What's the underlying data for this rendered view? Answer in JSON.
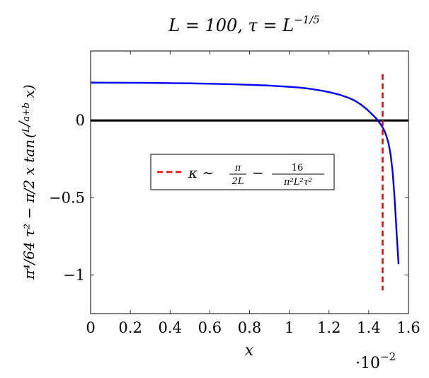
{
  "chart_data": {
    "type": "line",
    "title": "L = 100, τ = L",
    "title_exponent": "−1/5",
    "xlabel": "x",
    "x_multiplier_base": "·10",
    "x_multiplier_exponent": "−2",
    "ylabel_main": "π⁴/64 τ² − π/2 x tan",
    "ylabel_frac_num": "L",
    "ylabel_frac_den": "a+b",
    "ylabel_arg": "x",
    "xlim": [
      0,
      1.6
    ],
    "ylim": [
      -1.25,
      0.45
    ],
    "x_scale_factor": 0.01,
    "x_ticks": [
      0,
      0.2,
      0.4,
      0.6,
      0.8,
      1,
      1.2,
      1.4,
      1.6
    ],
    "x_tick_labels": [
      "0",
      "0.2",
      "0.4",
      "0.6",
      "0.8",
      "1",
      "1.2",
      "1.4",
      "1.6"
    ],
    "y_ticks": [
      0,
      -0.5,
      -1
    ],
    "y_tick_labels": [
      "0",
      "−0.5",
      "−1"
    ],
    "grid": false,
    "series": [
      {
        "color": "#0000ff",
        "x": [
          0,
          0.1,
          0.2,
          0.3,
          0.4,
          0.5,
          0.6,
          0.7,
          0.8,
          0.9,
          1.0,
          1.05,
          1.1,
          1.15,
          1.2,
          1.25,
          1.3,
          1.33,
          1.36,
          1.39,
          1.42,
          1.44,
          1.46,
          1.47,
          1.48,
          1.49,
          1.5,
          1.51,
          1.52,
          1.53,
          1.54,
          1.55
        ],
        "values": [
          0.245,
          0.2448,
          0.2442,
          0.2433,
          0.242,
          0.2403,
          0.238,
          0.235,
          0.231,
          0.226,
          0.218,
          0.213,
          0.206,
          0.196,
          0.184,
          0.168,
          0.146,
          0.128,
          0.104,
          0.073,
          0.036,
          0.01,
          -0.025,
          -0.045,
          -0.07,
          -0.105,
          -0.15,
          -0.22,
          -0.33,
          -0.5,
          -0.72,
          -0.93
        ]
      }
    ],
    "reference_lines": [
      {
        "orientation": "horizontal",
        "y": 0,
        "color": "#000000"
      },
      {
        "orientation": "vertical",
        "x": 1.47,
        "y_range": [
          -1.1,
          0.3
        ],
        "color": "#ff0000",
        "dashed": true
      }
    ],
    "legend": {
      "placement": "center-left",
      "entries": [
        {
          "symbol": "κ ∼",
          "frac1_num": "π",
          "frac1_den": "2L",
          "minus": "−",
          "frac2_num": "16",
          "frac2_den": "π²L²τ²",
          "color": "#ff0000",
          "dashed": true
        }
      ]
    }
  }
}
